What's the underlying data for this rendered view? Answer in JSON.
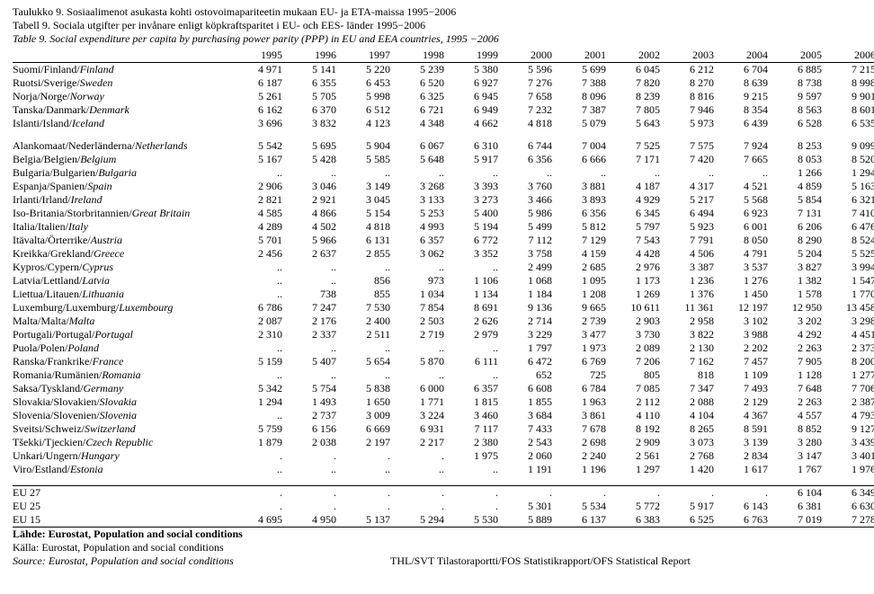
{
  "titles": {
    "fi": "Taulukko 9. Sosiaalimenot asukasta kohti ostovoimapariteetin mukaan EU- ja ETA-maissa 1995−2006",
    "sv": "Tabell 9. Sociala utgifter per invånare enligt köpkraftsparitet i EU- och EES- länder 1995−2006",
    "en": "Table 9. Social expenditure per capita by purchasing power parity (PPP) in EU and EEA countries, 1995 −2006"
  },
  "years": [
    "1995",
    "1996",
    "1997",
    "1998",
    "1999",
    "2000",
    "2001",
    "2002",
    "2003",
    "2004",
    "2005",
    "2006"
  ],
  "block1": [
    {
      "label": "Suomi/Finland/Finland",
      "ital": "Finland",
      "v": [
        "4 971",
        "5 141",
        "5 220",
        "5 239",
        "5 380",
        "5 596",
        "5 699",
        "6 045",
        "6 212",
        "6 704",
        "6 885",
        "7 215"
      ]
    },
    {
      "label": "Ruotsi/Sverige/Sweden",
      "ital": "Sweden",
      "v": [
        "6 187",
        "6 355",
        "6 453",
        "6 520",
        "6 927",
        "7 276",
        "7 388",
        "7 820",
        "8 270",
        "8 639",
        "8 738",
        "8 998"
      ]
    },
    {
      "label": "Norja/Norge/Norway",
      "ital": "Norway",
      "v": [
        "5 261",
        "5 705",
        "5 998",
        "6 325",
        "6 945",
        "7 658",
        "8 096",
        "8 239",
        "8 816",
        "9 215",
        "9 597",
        "9 901"
      ]
    },
    {
      "label": "Tanska/Danmark/Denmark",
      "ital": "Denmark",
      "v": [
        "6 162",
        "6 370",
        "6 512",
        "6 721",
        "6 949",
        "7 232",
        "7 387",
        "7 805",
        "7 946",
        "8 354",
        "8 563",
        "8 601"
      ]
    },
    {
      "label": "Islanti/Island/Iceland",
      "ital": "Iceland",
      "v": [
        "3 696",
        "3 832",
        "4 123",
        "4 348",
        "4 662",
        "4 818",
        "5 079",
        "5 643",
        "5 973",
        "6 439",
        "6 528",
        "6 535"
      ]
    }
  ],
  "block2": [
    {
      "label": "Alankomaat/Nederländerna/Netherlands",
      "ital": "Netherlands",
      "v": [
        "5 542",
        "5 695",
        "5 904",
        "6 067",
        "6 310",
        "6 744",
        "7 004",
        "7 525",
        "7 575",
        "7 924",
        "8 253",
        "9 099"
      ]
    },
    {
      "label": "Belgia/Belgien/Belgium",
      "ital": "Belgium",
      "v": [
        "5 167",
        "5 428",
        "5 585",
        "5 648",
        "5 917",
        "6 356",
        "6 666",
        "7 171",
        "7 420",
        "7 665",
        "8 053",
        "8 520"
      ]
    },
    {
      "label": "Bulgaria/Bulgarien/Bulgaria",
      "ital": "Bulgaria",
      "v": [
        "..",
        "..",
        "..",
        "..",
        "..",
        "..",
        "..",
        "..",
        "..",
        "..",
        "1 266",
        "1 294"
      ]
    },
    {
      "label": "Espanja/Spanien/Spain",
      "ital": "Spain",
      "v": [
        "2 906",
        "3 046",
        "3 149",
        "3 268",
        "3 393",
        "3 760",
        "3 881",
        "4 187",
        "4 317",
        "4 521",
        "4 859",
        "5 163"
      ]
    },
    {
      "label": "Irlanti/Irland/Ireland",
      "ital": "Ireland",
      "v": [
        "2 821",
        "2 921",
        "3 045",
        "3 133",
        "3 273",
        "3 466",
        "3 893",
        "4 929",
        "5 217",
        "5 568",
        "5 854",
        "6 321"
      ]
    },
    {
      "label": "Iso-Britania/Storbritannien/Great Britain",
      "ital": "Great Britain",
      "v": [
        "4 585",
        "4 866",
        "5 154",
        "5 253",
        "5 400",
        "5 986",
        "6 356",
        "6 345",
        "6 494",
        "6 923",
        "7 131",
        "7 410"
      ]
    },
    {
      "label": "Italia/Italien/Italy",
      "ital": "Italy",
      "v": [
        "4 289",
        "4 502",
        "4 818",
        "4 993",
        "5 194",
        "5 499",
        "5 812",
        "5 797",
        "5 923",
        "6 001",
        "6 206",
        "6 476"
      ]
    },
    {
      "label": "Itävalta/Örterrike/Austria",
      "ital": "Austria",
      "v": [
        "5 701",
        "5 966",
        "6 131",
        "6 357",
        "6 772",
        "7 112",
        "7 129",
        "7 543",
        "7 791",
        "8 050",
        "8 290",
        "8 524"
      ]
    },
    {
      "label": "Kreikka/Grekland/Greece",
      "ital": "Greece",
      "v": [
        "2 456",
        "2 637",
        "2 855",
        "3 062",
        "3 352",
        "3 758",
        "4 159",
        "4 428",
        "4 506",
        "4 791",
        "5 204",
        "5 525"
      ]
    },
    {
      "label": "Kypros/Cypern/Cyprus",
      "ital": "Cyprus",
      "v": [
        "..",
        "..",
        "..",
        "..",
        "..",
        "2 499",
        "2 685",
        "2 976",
        "3 387",
        "3 537",
        "3 827",
        "3 994"
      ]
    },
    {
      "label": "Latvia/Lettland/Latvia",
      "ital": "Latvia",
      "v": [
        "..",
        "..",
        "856",
        "973",
        "1 106",
        "1 068",
        "1 095",
        "1 173",
        "1 236",
        "1 276",
        "1 382",
        "1 547"
      ]
    },
    {
      "label": "Liettua/Litauen/Lithuania",
      "ital": "Lithuania",
      "v": [
        "..",
        "738",
        "855",
        "1 034",
        "1 134",
        "1 184",
        "1 208",
        "1 269",
        "1 376",
        "1 450",
        "1 578",
        "1 770"
      ]
    },
    {
      "label": "Luxemburg/Luxemburg/Luxembourg",
      "ital": "Luxembourg",
      "v": [
        "6 786",
        "7 247",
        "7 530",
        "7 854",
        "8 691",
        "9 136",
        "9 665",
        "10 611",
        "11 361",
        "12 197",
        "12 950",
        "13 458"
      ]
    },
    {
      "label": "Malta/Malta/Malta",
      "ital": "Malta",
      "v": [
        "2 087",
        "2 176",
        "2 400",
        "2 503",
        "2 626",
        "2 714",
        "2 739",
        "2 903",
        "2 958",
        "3 102",
        "3 202",
        "3 298"
      ]
    },
    {
      "label": "Portugali/Portugal/Portugal",
      "ital": "Portugal",
      "v": [
        "2 310",
        "2 337",
        "2 511",
        "2 719",
        "2 979",
        "3 229",
        "3 477",
        "3 730",
        "3 822",
        "3 988",
        "4 292",
        "4 451"
      ]
    },
    {
      "label": "Puola/Polen/Poland",
      "ital": "Poland",
      "v": [
        "..",
        "..",
        "..",
        "..",
        "..",
        "1 797",
        "1 973",
        "2 089",
        "2 130",
        "2 202",
        "2 263",
        "2 373"
      ]
    },
    {
      "label": "Ranska/Frankrike/France",
      "ital": "France",
      "v": [
        "5 159",
        "5 407",
        "5 654",
        "5 870",
        "6 111",
        "6 472",
        "6 769",
        "7 206",
        "7 162",
        "7 457",
        "7 905",
        "8 200"
      ]
    },
    {
      "label": "Romania/Rumänien/Romania",
      "ital": "Romania",
      "v": [
        "..",
        "..",
        "..",
        "..",
        "..",
        "652",
        "725",
        "805",
        "818",
        "1 109",
        "1 128",
        "1 277"
      ]
    },
    {
      "label": "Saksa/Tyskland/Germany",
      "ital": "Germany",
      "v": [
        "5 342",
        "5 754",
        "5 838",
        "6 000",
        "6 357",
        "6 608",
        "6 784",
        "7 085",
        "7 347",
        "7 493",
        "7 648",
        "7 706"
      ]
    },
    {
      "label": "Slovakia/Slovakien/Slovakia",
      "ital": "Slovakia",
      "v": [
        "1 294",
        "1 493",
        "1 650",
        "1 771",
        "1 815",
        "1 855",
        "1 963",
        "2 112",
        "2 088",
        "2 129",
        "2 263",
        "2 387"
      ]
    },
    {
      "label": "Slovenia/Slovenien/Slovenia",
      "ital": "Slovenia",
      "v": [
        "..",
        "2 737",
        "3 009",
        "3 224",
        "3 460",
        "3 684",
        "3 861",
        "4 110",
        "4 104",
        "4 367",
        "4 557",
        "4 793"
      ]
    },
    {
      "label": "Sveitsi/Schweiz/Switzerland",
      "ital": "Switzerland",
      "v": [
        "5 759",
        "6 156",
        "6 669",
        "6 931",
        "7 117",
        "7 433",
        "7 678",
        "8 192",
        "8 265",
        "8 591",
        "8 852",
        "9 127"
      ]
    },
    {
      "label": "Tšekki/Tjeckien/Czech Republic",
      "ital": "Czech Republic",
      "v": [
        "1 879",
        "2 038",
        "2 197",
        "2 217",
        "2 380",
        "2 543",
        "2 698",
        "2 909",
        "3 073",
        "3 139",
        "3 280",
        "3 439"
      ]
    },
    {
      "label": "Unkari/Ungern/Hungary",
      "ital": "Hungary",
      "v": [
        ".",
        ".",
        ".",
        ".",
        "1 975",
        "2 060",
        "2 240",
        "2 561",
        "2 768",
        "2 834",
        "3 147",
        "3 401"
      ]
    },
    {
      "label": "Viro/Estland/Estonia",
      "ital": "Estonia",
      "v": [
        "..",
        "..",
        "..",
        "..",
        "..",
        "1 191",
        "1 196",
        "1 297",
        "1 420",
        "1 617",
        "1 767",
        "1 976"
      ]
    }
  ],
  "eu": [
    {
      "label": "EU 27",
      "v": [
        ".",
        ".",
        ".",
        ".",
        ".",
        ".",
        ".",
        ".",
        ".",
        ".",
        "6 104",
        "6 349"
      ]
    },
    {
      "label": "EU 25",
      "v": [
        ".",
        ".",
        ".",
        ".",
        ".",
        "5 301",
        "5 534",
        "5 772",
        "5 917",
        "6 143",
        "6 381",
        "6 630"
      ]
    },
    {
      "label": "EU 15",
      "v": [
        "4 695",
        "4 950",
        "5 137",
        "5 294",
        "5 530",
        "5 889",
        "6 137",
        "6 383",
        "6 525",
        "6 763",
        "7 019",
        "7 278"
      ]
    }
  ],
  "source": {
    "fi": "Lähde: Eurostat, Population and social conditions",
    "sv": "Källa: Eurostat, Population and social conditions",
    "en": "Source: Eurostat, Population and social conditions"
  },
  "center_note": "THL/SVT Tilastoraportti/FOS Statistikrapport/OFS Statistical Report"
}
